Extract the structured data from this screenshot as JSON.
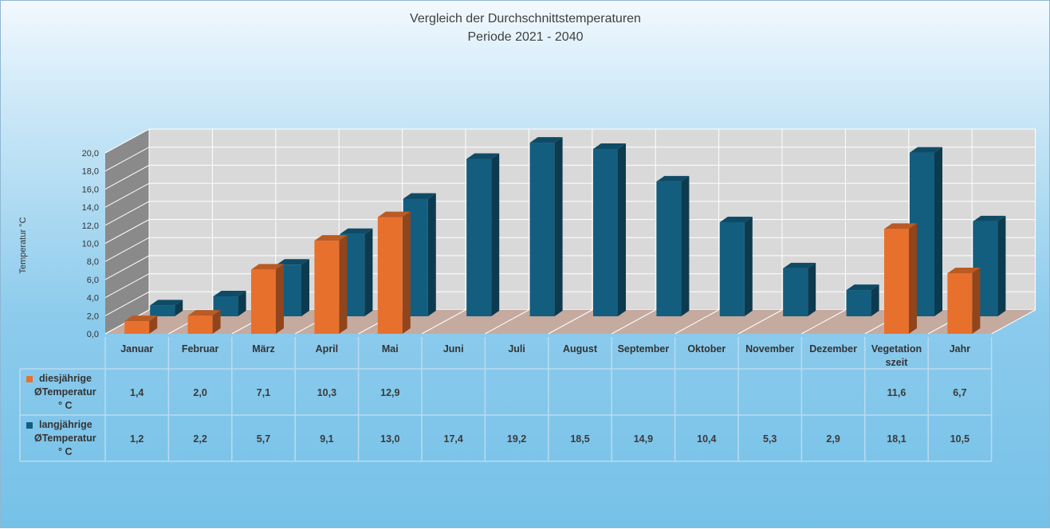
{
  "chart_data": {
    "type": "bar",
    "title": "Vergleich der Durchschnittstemperaturen",
    "subtitle": "Periode 2021 - 2040",
    "ylabel": "Temperatur °C",
    "ylim": [
      0,
      20
    ],
    "yticks": [
      "0,0",
      "2,0",
      "4,0",
      "6,0",
      "8,0",
      "10,0",
      "12,0",
      "14,0",
      "16,0",
      "18,0",
      "20,0"
    ],
    "categories": [
      "Januar",
      "Februar",
      "März",
      "April",
      "Mai",
      "Juni",
      "Juli",
      "August",
      "September",
      "Oktober",
      "November",
      "Dezember",
      "Vegetation szeit",
      "Jahr"
    ],
    "series": [
      {
        "name": "diesjährige ØTemperatur ° C",
        "color": "#e8702d",
        "values": [
          1.4,
          2.0,
          7.1,
          10.3,
          12.9,
          null,
          null,
          null,
          null,
          null,
          null,
          null,
          11.6,
          6.7
        ],
        "labels": [
          "1,4",
          "2,0",
          "7,1",
          "10,3",
          "12,9",
          "",
          "",
          "",
          "",
          "",
          "",
          "",
          "11,6",
          "6,7"
        ]
      },
      {
        "name": "langjährige ØTemperatur ° C",
        "color": "#135e7f",
        "values": [
          1.2,
          2.2,
          5.7,
          9.1,
          13.0,
          17.4,
          19.2,
          18.5,
          14.9,
          10.4,
          5.3,
          2.9,
          18.1,
          10.5
        ],
        "labels": [
          "1,2",
          "2,2",
          "5,7",
          "9,1",
          "13,0",
          "17,4",
          "19,2",
          "18,5",
          "14,9",
          "10,4",
          "5,3",
          "2,9",
          "18,1",
          "10,5"
        ]
      }
    ],
    "legend_placement": "data-table",
    "grid": true
  }
}
